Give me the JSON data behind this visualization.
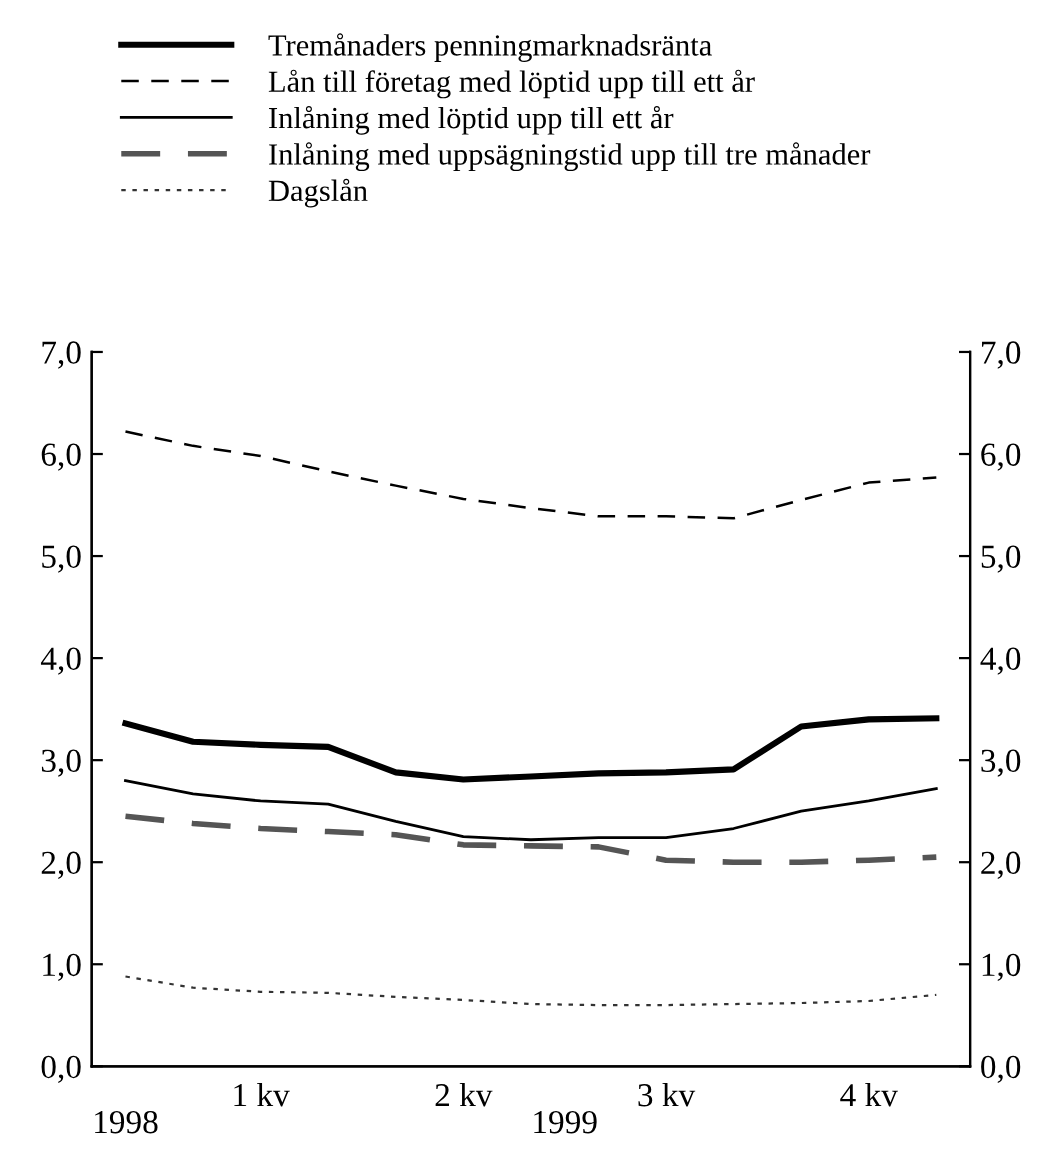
{
  "chart_data": {
    "type": "line",
    "categories": [
      null,
      null,
      "1 kv",
      null,
      null,
      "2 kv",
      null,
      null,
      "3 kv",
      null,
      null,
      "4 kv",
      null
    ],
    "series": [
      {
        "name": "Tremånaders penningmarknadsränta",
        "color": "#000000",
        "line_style": "solid",
        "values": [
          3.36,
          3.18,
          3.15,
          3.13,
          2.88,
          2.81,
          2.84,
          2.87,
          2.88,
          2.91,
          3.33,
          3.4,
          3.41
        ]
      },
      {
        "name": "Lån till företag med löptid upp till ett år",
        "color": "#000000",
        "line_style": "dashed",
        "values": [
          6.22,
          6.08,
          5.98,
          5.83,
          5.69,
          5.56,
          5.47,
          5.39,
          5.39,
          5.37,
          5.55,
          5.72,
          5.77
        ]
      },
      {
        "name": "Inlåning med löptid upp till ett år",
        "color": "#000000",
        "line_style": "solid",
        "values": [
          2.8,
          2.67,
          2.6,
          2.57,
          2.4,
          2.25,
          2.22,
          2.24,
          2.24,
          2.33,
          2.5,
          2.6,
          2.72
        ]
      },
      {
        "name": "Inlåning med uppsägningstid upp till tre månader",
        "color": "#555555",
        "line_style": "dashed",
        "values": [
          2.45,
          2.38,
          2.33,
          2.3,
          2.27,
          2.17,
          2.16,
          2.15,
          2.02,
          2.0,
          2.0,
          2.02,
          2.05
        ]
      },
      {
        "name": "Dagslån",
        "color": "#333333",
        "line_style": "dotted",
        "values": [
          0.88,
          0.77,
          0.73,
          0.72,
          0.68,
          0.65,
          0.61,
          0.6,
          0.6,
          0.61,
          0.62,
          0.64,
          0.7
        ]
      }
    ],
    "ylim": [
      0,
      7
    ],
    "yticks": [
      {
        "value": 0,
        "label": "0,0"
      },
      {
        "value": 1,
        "label": "1,0"
      },
      {
        "value": 2,
        "label": "2,0"
      },
      {
        "value": 3,
        "label": "3,0"
      },
      {
        "value": 4,
        "label": "4,0"
      },
      {
        "value": 5,
        "label": "5,0"
      },
      {
        "value": 6,
        "label": "6,0"
      },
      {
        "value": 7,
        "label": "7,0"
      }
    ],
    "y2lim": [
      0,
      7
    ],
    "y2ticks": [
      {
        "value": 0,
        "label": "0,0"
      },
      {
        "value": 1,
        "label": "1,0"
      },
      {
        "value": 2,
        "label": "2,0"
      },
      {
        "value": 3,
        "label": "3,0"
      },
      {
        "value": 4,
        "label": "4,0"
      },
      {
        "value": 5,
        "label": "5,0"
      },
      {
        "value": 6,
        "label": "6,0"
      },
      {
        "value": 7,
        "label": "7,0"
      }
    ],
    "annotations": [
      "1998",
      "1999"
    ],
    "legend": "top",
    "grid": false,
    "marker": "none"
  }
}
